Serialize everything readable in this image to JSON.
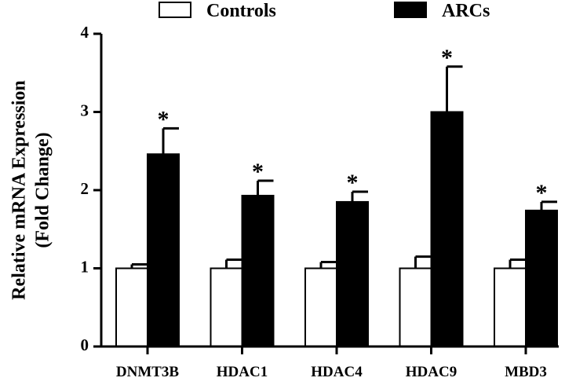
{
  "chart_data": {
    "type": "bar",
    "title": "",
    "ylabel_line1": "Relative mRNA Expression",
    "ylabel_line2": "(Fold Change)",
    "xlabel": "",
    "ylim": [
      0,
      4
    ],
    "yticks": [
      0,
      1,
      2,
      3,
      4
    ],
    "categories": [
      "DNMT3B",
      "HDAC1",
      "HDAC4",
      "HDAC9",
      "MBD3"
    ],
    "series": [
      {
        "name": "Controls",
        "color": "#ffffff",
        "values": [
          1.0,
          1.0,
          1.0,
          1.0,
          1.0
        ],
        "errors": [
          0.05,
          0.11,
          0.08,
          0.15,
          0.11
        ]
      },
      {
        "name": "ARCs",
        "color": "#000000",
        "values": [
          2.46,
          1.93,
          1.85,
          3.0,
          1.74
        ],
        "errors": [
          0.33,
          0.19,
          0.13,
          0.58,
          0.11
        ]
      }
    ],
    "annotations": [
      "*",
      "*",
      "*",
      "*",
      "*"
    ],
    "legend_position": "top"
  }
}
